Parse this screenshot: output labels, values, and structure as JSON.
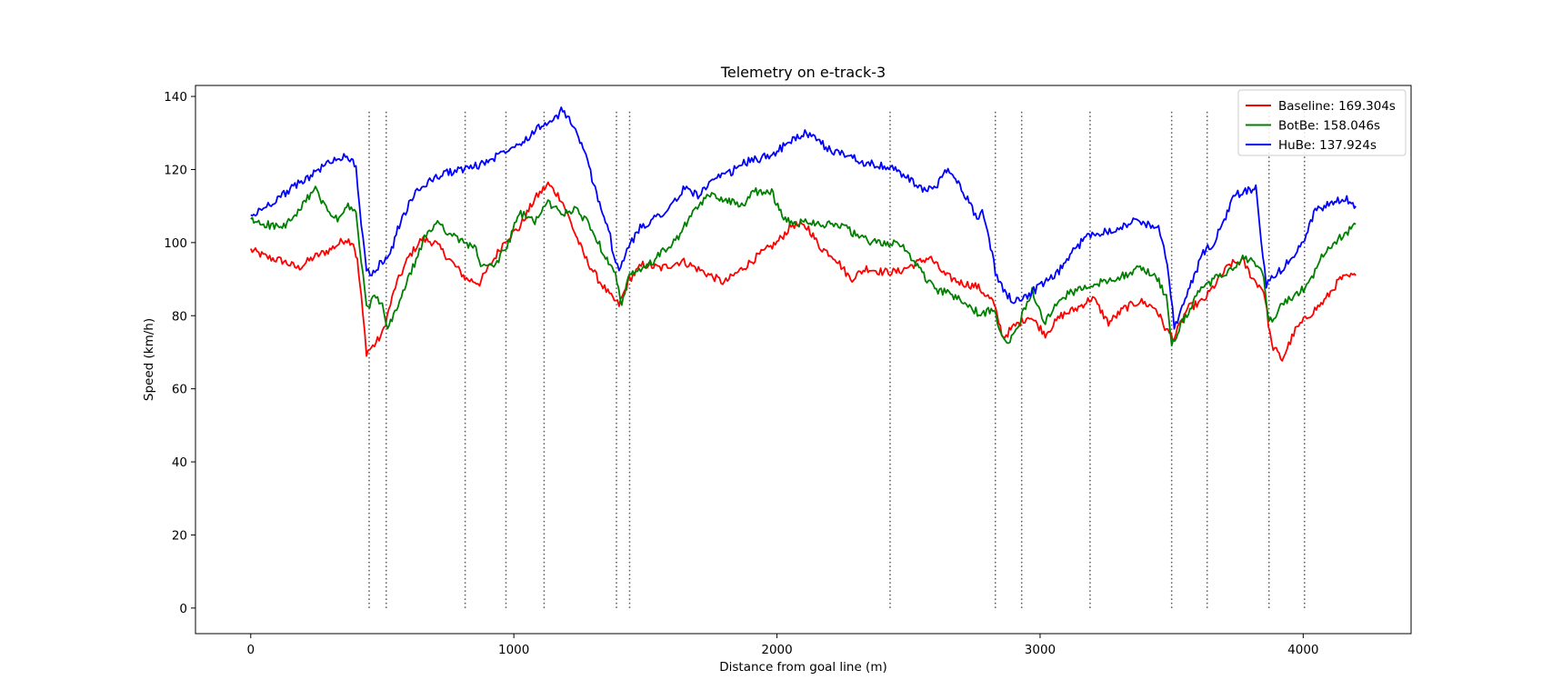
{
  "chart_data": {
    "type": "line",
    "title": "Telemetry on e-track-3",
    "xlabel": "Distance from goal line (m)",
    "ylabel": "Speed (km/h)",
    "xlim": [
      -210,
      4410
    ],
    "ylim": [
      -7,
      143
    ],
    "xticks": [
      0,
      1000,
      2000,
      3000,
      4000
    ],
    "yticks": [
      0,
      20,
      40,
      60,
      80,
      100,
      120,
      140
    ],
    "grid": false,
    "legend_position": "top-right",
    "vlines": {
      "x": [
        450,
        515,
        815,
        970,
        1115,
        1390,
        1440,
        2430,
        2830,
        2930,
        3190,
        3500,
        3635,
        3870,
        4005
      ],
      "y_range": [
        0,
        136
      ],
      "style": "dotted",
      "color": "#555555"
    },
    "series": [
      {
        "name": "Baseline: 169.304s",
        "color": "#ff0000",
        "x": [
          0,
          60,
          120,
          180,
          240,
          300,
          360,
          390,
          405,
          420,
          440,
          470,
          500,
          550,
          600,
          650,
          700,
          760,
          820,
          870,
          920,
          970,
          1020,
          1080,
          1130,
          1180,
          1230,
          1270,
          1320,
          1370,
          1400,
          1440,
          1490,
          1560,
          1640,
          1720,
          1800,
          1870,
          1940,
          2000,
          2060,
          2120,
          2160,
          2220,
          2280,
          2340,
          2400,
          2460,
          2520,
          2580,
          2640,
          2700,
          2760,
          2820,
          2860,
          2900,
          2960,
          3020,
          3080,
          3140,
          3200,
          3260,
          3320,
          3380,
          3440,
          3480,
          3510,
          3560,
          3620,
          3680,
          3720,
          3770,
          3810,
          3850,
          3880,
          3920,
          3970,
          4020,
          4080,
          4140,
          4200
        ],
        "y": [
          98,
          96,
          95,
          93,
          96,
          98,
          101,
          100,
          95,
          85,
          70,
          72,
          75,
          88,
          96,
          101,
          100,
          95,
          90,
          89,
          95,
          101,
          104,
          112,
          116,
          112,
          103,
          96,
          90,
          85,
          83,
          90,
          94,
          93,
          95,
          92,
          89,
          93,
          97,
          100,
          105,
          104,
          99,
          96,
          90,
          93,
          92,
          92,
          94,
          96,
          91,
          89,
          88,
          84,
          74,
          77,
          80,
          75,
          80,
          82,
          85,
          78,
          82,
          84,
          82,
          76,
          74,
          82,
          84,
          90,
          94,
          95,
          90,
          87,
          72,
          68,
          76,
          80,
          84,
          90,
          91
        ]
      },
      {
        "name": "BotBe: 158.046s",
        "color": "#008000",
        "x": [
          0,
          60,
          120,
          180,
          240,
          280,
          330,
          370,
          400,
          420,
          440,
          470,
          500,
          520,
          560,
          610,
          660,
          710,
          760,
          810,
          850,
          880,
          930,
          980,
          1020,
          1080,
          1130,
          1180,
          1230,
          1280,
          1320,
          1360,
          1380,
          1410,
          1440,
          1500,
          1560,
          1620,
          1680,
          1740,
          1800,
          1860,
          1920,
          1980,
          2020,
          2060,
          2120,
          2180,
          2240,
          2300,
          2360,
          2420,
          2480,
          2540,
          2600,
          2660,
          2720,
          2780,
          2820,
          2850,
          2880,
          2920,
          2970,
          3020,
          3080,
          3140,
          3200,
          3260,
          3320,
          3380,
          3440,
          3480,
          3500,
          3540,
          3600,
          3660,
          3720,
          3770,
          3820,
          3850,
          3870,
          3920,
          3970,
          4020,
          4070,
          4120,
          4170,
          4200
        ],
        "y": [
          106,
          105,
          104,
          108,
          115,
          110,
          106,
          110,
          108,
          95,
          82,
          85,
          83,
          76,
          83,
          92,
          101,
          106,
          102,
          100,
          99,
          93,
          94,
          100,
          108,
          106,
          111,
          108,
          109,
          106,
          100,
          95,
          93,
          83,
          91,
          93,
          97,
          101,
          108,
          113,
          112,
          110,
          114,
          114,
          107,
          105,
          106,
          105,
          105,
          102,
          100,
          100,
          99,
          93,
          87,
          86,
          83,
          80,
          82,
          76,
          73,
          78,
          87,
          78,
          85,
          87,
          88,
          90,
          91,
          93,
          91,
          85,
          72,
          78,
          86,
          90,
          92,
          96,
          94,
          91,
          78,
          83,
          86,
          88,
          96,
          100,
          103,
          105
        ]
      },
      {
        "name": "HuBe: 137.924s",
        "color": "#0000ff",
        "x": [
          0,
          60,
          120,
          180,
          240,
          300,
          360,
          400,
          420,
          440,
          460,
          490,
          530,
          570,
          620,
          680,
          740,
          800,
          860,
          920,
          980,
          1040,
          1100,
          1150,
          1180,
          1210,
          1240,
          1280,
          1320,
          1360,
          1380,
          1400,
          1430,
          1480,
          1540,
          1600,
          1650,
          1700,
          1760,
          1820,
          1880,
          1940,
          2000,
          2060,
          2100,
          2150,
          2210,
          2270,
          2330,
          2390,
          2450,
          2510,
          2560,
          2610,
          2650,
          2690,
          2730,
          2760,
          2780,
          2800,
          2830,
          2860,
          2900,
          2940,
          3000,
          3060,
          3120,
          3180,
          3240,
          3300,
          3360,
          3410,
          3450,
          3470,
          3490,
          3510,
          3540,
          3580,
          3620,
          3660,
          3700,
          3740,
          3780,
          3820,
          3840,
          3860,
          3880,
          3920,
          3960,
          4000,
          4040,
          4080,
          4120,
          4160,
          4200
        ],
        "y": [
          107,
          110,
          113,
          116,
          119,
          122,
          124,
          121,
          105,
          92,
          91,
          94,
          97,
          106,
          113,
          117,
          119,
          120,
          121,
          123,
          126,
          128,
          132,
          133,
          136,
          134,
          130,
          122,
          112,
          104,
          96,
          92,
          98,
          104,
          107,
          110,
          115,
          113,
          117,
          119,
          122,
          123,
          125,
          128,
          130,
          128,
          125,
          124,
          122,
          121,
          120,
          117,
          114,
          116,
          120,
          116,
          111,
          107,
          108,
          104,
          92,
          87,
          84,
          85,
          88,
          91,
          97,
          102,
          103,
          104,
          106,
          105,
          104,
          100,
          90,
          77,
          82,
          90,
          97,
          100,
          106,
          113,
          114,
          115,
          100,
          88,
          90,
          93,
          96,
          100,
          108,
          110,
          111,
          112,
          110
        ]
      }
    ]
  }
}
